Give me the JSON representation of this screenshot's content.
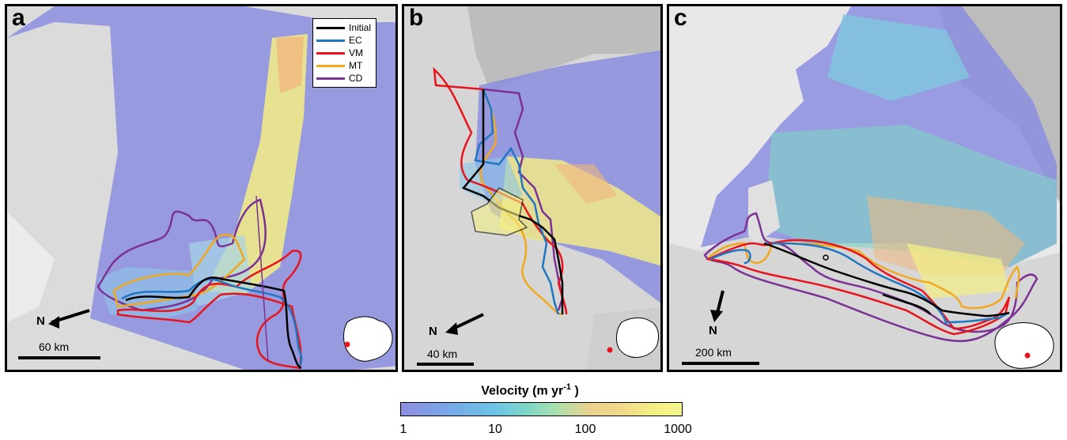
{
  "panels": [
    {
      "label": "a",
      "scale": "60 km",
      "north": "N"
    },
    {
      "label": "b",
      "scale": "40 km",
      "north": "N"
    },
    {
      "label": "c",
      "scale": "200 km",
      "north": "N"
    }
  ],
  "legend": [
    {
      "name": "Initial",
      "color": "#000000"
    },
    {
      "name": "EC",
      "color": "#1f77c4"
    },
    {
      "name": "VM",
      "color": "#e8141b"
    },
    {
      "name": "MT",
      "color": "#f2a81d"
    },
    {
      "name": "CD",
      "color": "#7b3294"
    }
  ],
  "colorbar": {
    "title": "Velocity (m yr",
    "title_exp": "-1",
    "title_end": " )",
    "ticks": [
      "1",
      "10",
      "100",
      "1000"
    ]
  }
}
